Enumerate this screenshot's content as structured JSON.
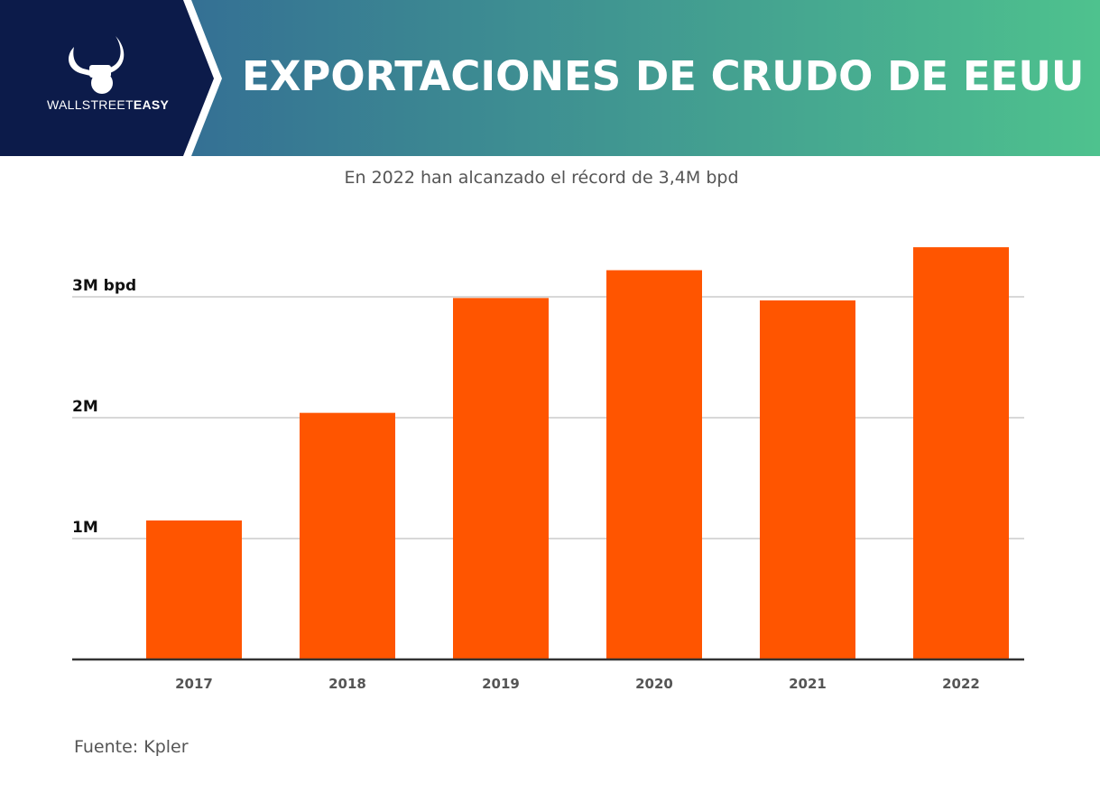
{
  "header": {
    "title": "EXPORTACIONES DE CRUDO DE EEUU",
    "brand_light": "WALLSTREET",
    "brand_bold": "EASY",
    "colors": {
      "navy": "#0c1b4a",
      "gradient_start": "#2f5f95",
      "gradient_end": "#4ec28e"
    }
  },
  "subtitle": "En 2022 han alcanzado el récord de 3,4M bpd",
  "source": "Fuente: Kpler",
  "chart_data": {
    "type": "bar",
    "categories": [
      "2017",
      "2018",
      "2019",
      "2020",
      "2021",
      "2022"
    ],
    "values": [
      1.15,
      2.04,
      2.99,
      3.22,
      2.97,
      3.41
    ],
    "unit": "M bpd",
    "ylim": [
      0,
      3.6
    ],
    "yticks": [
      {
        "value": 1,
        "label": "1M"
      },
      {
        "value": 2,
        "label": "2M"
      },
      {
        "value": 3,
        "label": "3M bpd"
      }
    ],
    "grid": true,
    "bar_color": "#ff5500"
  }
}
